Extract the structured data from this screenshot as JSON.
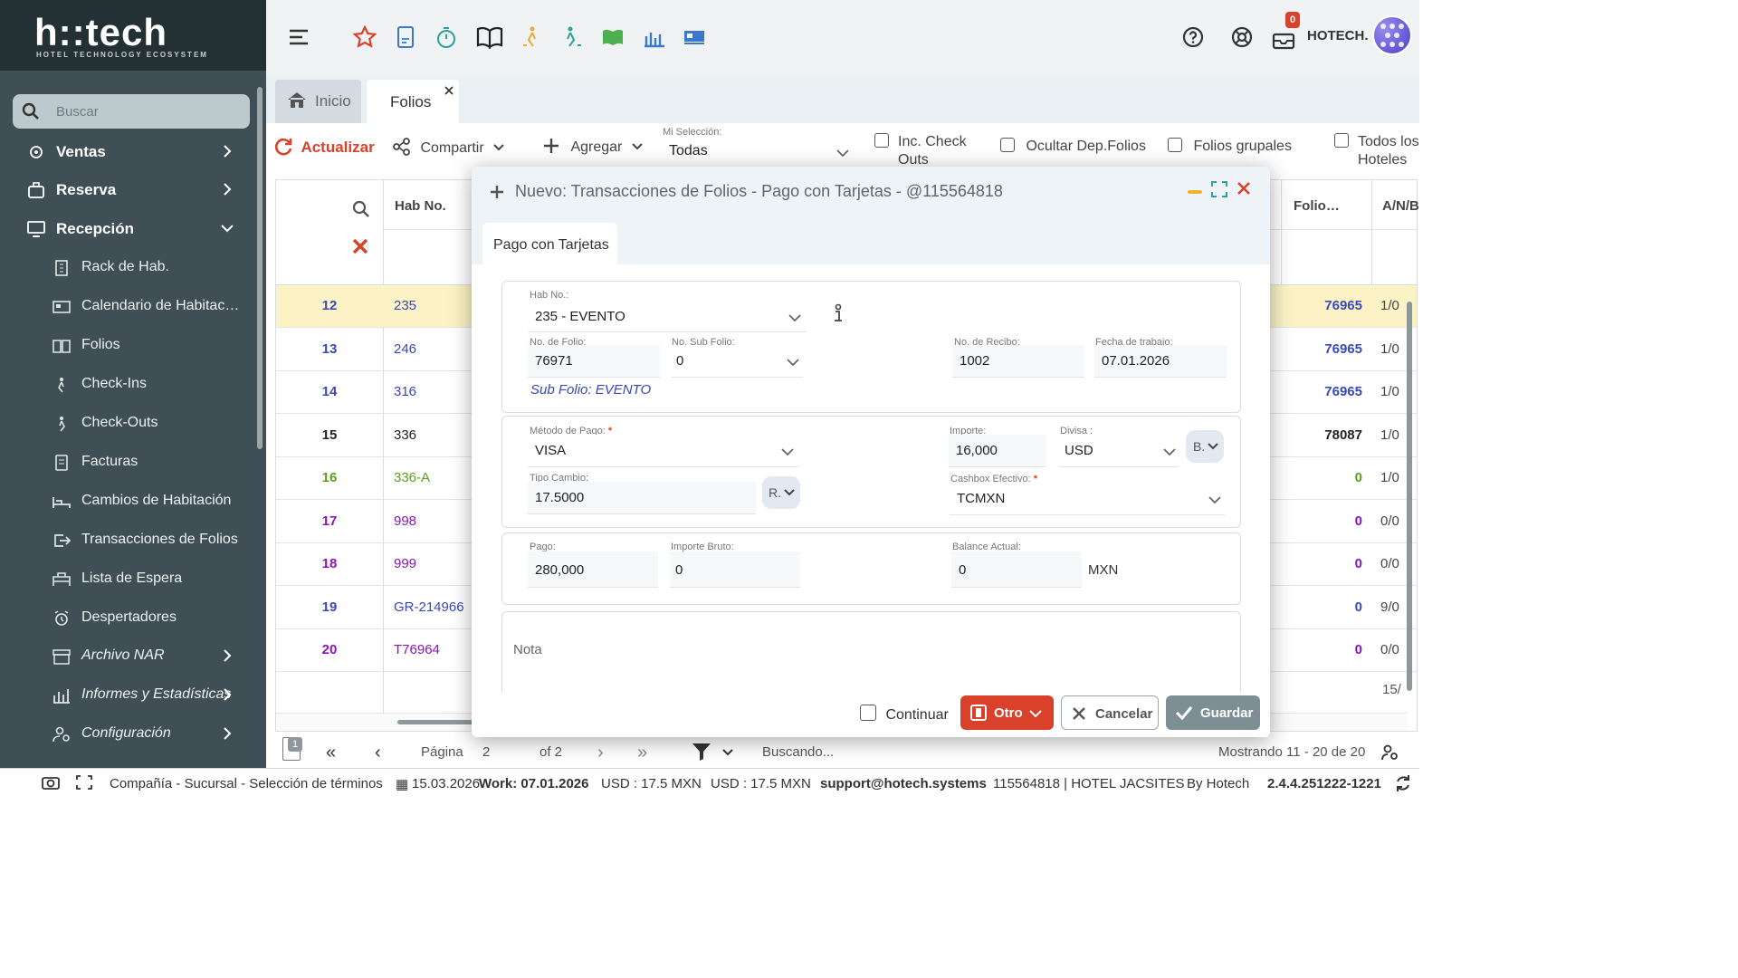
{
  "brand": {
    "name": "h::tech",
    "tagline": "HOTEL TECHNOLOGY ECOSYSTEM"
  },
  "sidebar": {
    "search_placeholder": "Buscar",
    "items": [
      {
        "label": "Ventas",
        "icon": "sales-icon"
      },
      {
        "label": "Reserva",
        "icon": "luggage-icon"
      },
      {
        "label": "Recepción",
        "icon": "monitor-icon"
      },
      {
        "label": "Rack de Hab.",
        "icon": "rack-icon"
      },
      {
        "label": "Calendario de Habitac…",
        "icon": "calendar-bed-icon"
      },
      {
        "label": "Folios",
        "icon": "book-icon"
      },
      {
        "label": "Check-Ins",
        "icon": "checkin-icon"
      },
      {
        "label": "Check-Outs",
        "icon": "checkout-icon"
      },
      {
        "label": "Facturas",
        "icon": "invoice-icon"
      },
      {
        "label": "Cambios de Habitación",
        "icon": "bed-icon"
      },
      {
        "label": "Transacciones de Folios",
        "icon": "transfer-icon"
      },
      {
        "label": "Lista de Espera",
        "icon": "waitlist-icon"
      },
      {
        "label": "Despertadores",
        "icon": "alarm-icon"
      },
      {
        "label": "Archivo NAR",
        "icon": "archive-icon"
      },
      {
        "label": "Informes y Estadísticas",
        "icon": "stats-icon"
      },
      {
        "label": "Configuración",
        "icon": "user-settings-icon"
      }
    ]
  },
  "topbar": {
    "notif_count": "0",
    "user": "HOTECH."
  },
  "tabs": [
    {
      "label": "Inicio"
    },
    {
      "label": "Folios"
    }
  ],
  "toolbar": {
    "refresh": "Actualizar",
    "share": "Compartir",
    "add": "Agregar",
    "selection_label": "Mi Selección:",
    "selection_value": "Todas",
    "inc_check_outs": "Inc. Check Outs",
    "hide_dep": "Ocultar Dep.Folios",
    "group_folios": "Folios grupales",
    "all_hotels": "Todos los Hoteles"
  },
  "grid": {
    "col_hab": "Hab No.",
    "col_folio": "Folio…",
    "col_anb": "A/N/B",
    "rows": [
      {
        "n": "12",
        "hab": "235",
        "folio": "76965",
        "anb": "1/0",
        "color": "#3a48b8"
      },
      {
        "n": "13",
        "hab": "246",
        "folio": "76965",
        "anb": "1/0",
        "color": "#3a48b8"
      },
      {
        "n": "14",
        "hab": "316",
        "folio": "76965",
        "anb": "1/0",
        "color": "#3a48b8"
      },
      {
        "n": "15",
        "hab": "336",
        "folio": "78087",
        "anb": "1/0",
        "color": "#222222"
      },
      {
        "n": "16",
        "hab": "336-A",
        "folio": "0",
        "anb": "1/0",
        "color": "#5c9c1e"
      },
      {
        "n": "17",
        "hab": "998",
        "folio": "0",
        "anb": "0/0",
        "color": "#8a14b8"
      },
      {
        "n": "18",
        "hab": "999",
        "folio": "0",
        "anb": "0/0",
        "color": "#8a14b8"
      },
      {
        "n": "19",
        "hab": "GR-214966",
        "folio": "0",
        "anb": "9/0",
        "color": "#3a48b8"
      },
      {
        "n": "20",
        "hab": "T76964",
        "folio": "0",
        "anb": "0/0",
        "color": "#8a14b8"
      }
    ],
    "footer_value": "15/"
  },
  "pager": {
    "page_label": "Página",
    "page": "2",
    "of": "of 2",
    "search": "Buscando...",
    "showing": "Mostrando 11 - 20 de 20",
    "badge": "1"
  },
  "modal": {
    "title": "Nuevo: Transacciones de Folios - Pago con Tarjetas - @115564818",
    "tab": "Pago con Tarjetas",
    "hab_label": "Hab No.:",
    "hab_value": "235 - EVENTO",
    "folio_label": "No. de Folio:",
    "folio_value": "76971",
    "subfolio_label": "No. Sub Folio:",
    "subfolio_value": "0",
    "recibo_label": "No. de Recibo:",
    "recibo_value": "1002",
    "fecha_label": "Fecha de trabajo:",
    "fecha_value": "07.01.2026",
    "subfolio_link": "Sub Folio: EVENTO",
    "metodo_label": "Método de Pago:",
    "metodo_value": "VISA",
    "importe_label": "Importe:",
    "importe_value": "16,000",
    "divisa_label": "Divisa :",
    "divisa_value": "USD",
    "divisa_btn": "B.",
    "tc_label": "Tipo Cambio:",
    "tc_value": "17.5000",
    "tc_btn": "R.",
    "cashbox_label": "Cashbox Efectivo:",
    "cashbox_value": "TCMXN",
    "pago_label": "Pago:",
    "pago_value": "280,000",
    "bruto_label": "Importe Bruto:",
    "bruto_value": "0",
    "balance_label": "Balance Actual:",
    "balance_value": "0",
    "balance_currency": "MXN",
    "nota_placeholder": "Nota",
    "continuar": "Continuar",
    "otro": "Otro",
    "cancelar": "Cancelar",
    "guardar": "Guardar"
  },
  "status": {
    "company": "Compañía - Sucursal - Selección de términos",
    "date": "15.03.2026",
    "work": "Work: 07.01.2026",
    "fx1": "USD : 17.5 MXN",
    "fx2": "USD : 17.5 MXN",
    "support": "support@hotech.systems",
    "hotel": "115564818 | HOTEL JACSITES",
    "by": "By Hotech",
    "version": "2.4.4.251222-1221"
  },
  "colors": {
    "accent_red": "#d9412b",
    "sidebar": "#3f4f55",
    "save_btn": "#7d8f95",
    "highlight_row": "#fbf3c5"
  }
}
